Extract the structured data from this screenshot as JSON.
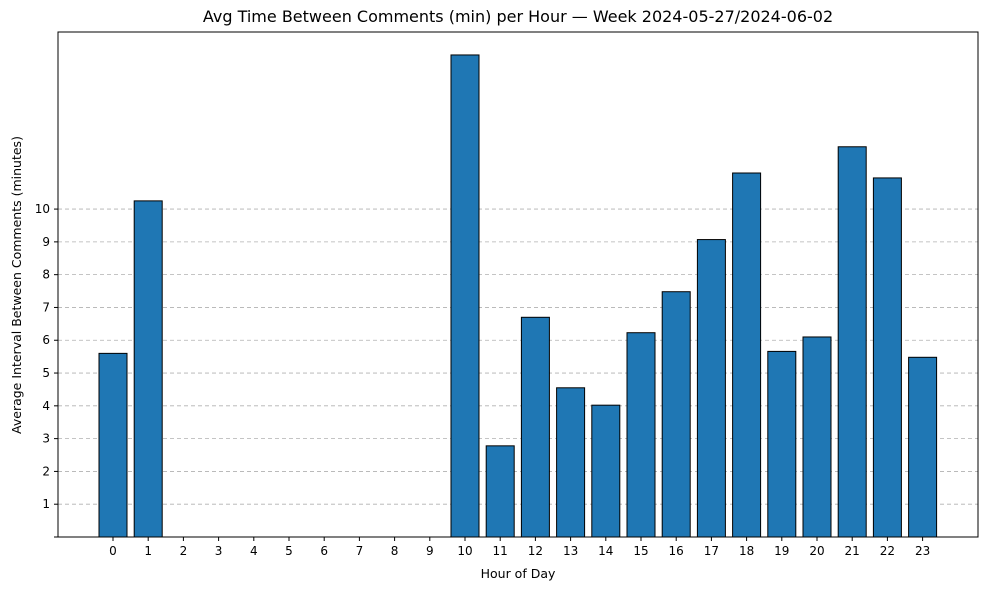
{
  "chart_data": {
    "type": "bar",
    "title": "Avg Time Between Comments (min) per Hour — Week 2024-05-27/2024-06-02",
    "xlabel": "Hour of Day",
    "ylabel": "Average Interval Between Comments (minutes)",
    "categories": [
      "0",
      "1",
      "2",
      "3",
      "4",
      "5",
      "6",
      "7",
      "8",
      "9",
      "10",
      "11",
      "12",
      "13",
      "14",
      "15",
      "16",
      "17",
      "18",
      "19",
      "20",
      "21",
      "22",
      "23"
    ],
    "values": [
      5.6,
      10.25,
      0,
      0,
      0,
      0,
      0,
      0,
      0,
      0,
      14.7,
      2.78,
      6.7,
      4.55,
      4.02,
      6.23,
      7.48,
      9.07,
      11.1,
      5.66,
      6.1,
      11.9,
      10.95,
      5.48
    ],
    "yticks": [
      1,
      2,
      3,
      4,
      5,
      6,
      7,
      8,
      9,
      10
    ],
    "ylim": [
      0,
      15.4
    ],
    "grid": "y-dashed",
    "bar_color": "#1f77b4",
    "edge_color": "#000000"
  }
}
